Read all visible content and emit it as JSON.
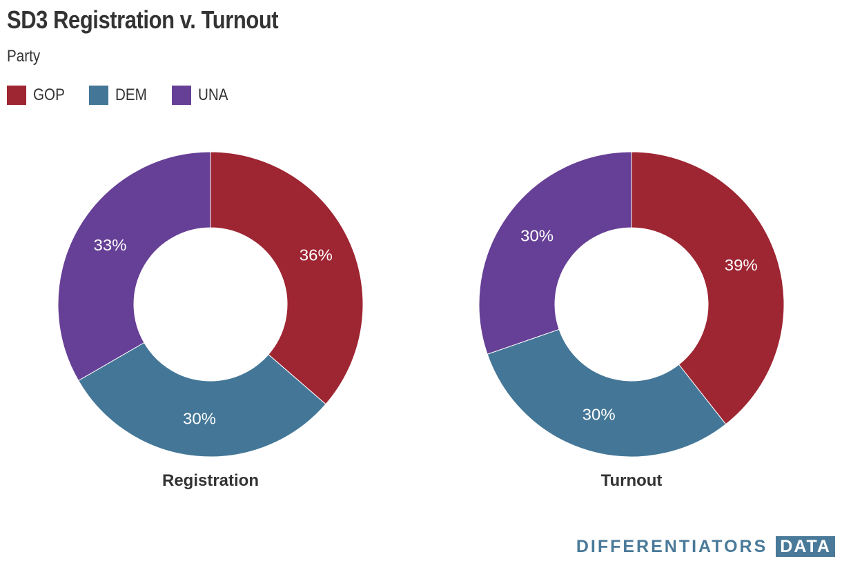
{
  "chart_data": {
    "type": "pie",
    "title": "SD3 Registration v. Turnout",
    "subtitle": "Party",
    "legend": {
      "position": "top-left",
      "entries": [
        {
          "label": "GOP",
          "color": "#9e2532"
        },
        {
          "label": "DEM",
          "color": "#447797"
        },
        {
          "label": "UNA",
          "color": "#663f96"
        }
      ]
    },
    "categories": [
      "GOP",
      "DEM",
      "UNA"
    ],
    "charts": [
      {
        "name": "Registration",
        "values": [
          36,
          30,
          33
        ],
        "labels": [
          "36%",
          "30%",
          "33%"
        ]
      },
      {
        "name": "Turnout",
        "values": [
          39,
          30,
          30
        ],
        "labels": [
          "39%",
          "30%",
          "30%"
        ]
      }
    ]
  },
  "branding": {
    "logo_text": "DIFFERENTIATORS",
    "logo_box": "DATA"
  }
}
